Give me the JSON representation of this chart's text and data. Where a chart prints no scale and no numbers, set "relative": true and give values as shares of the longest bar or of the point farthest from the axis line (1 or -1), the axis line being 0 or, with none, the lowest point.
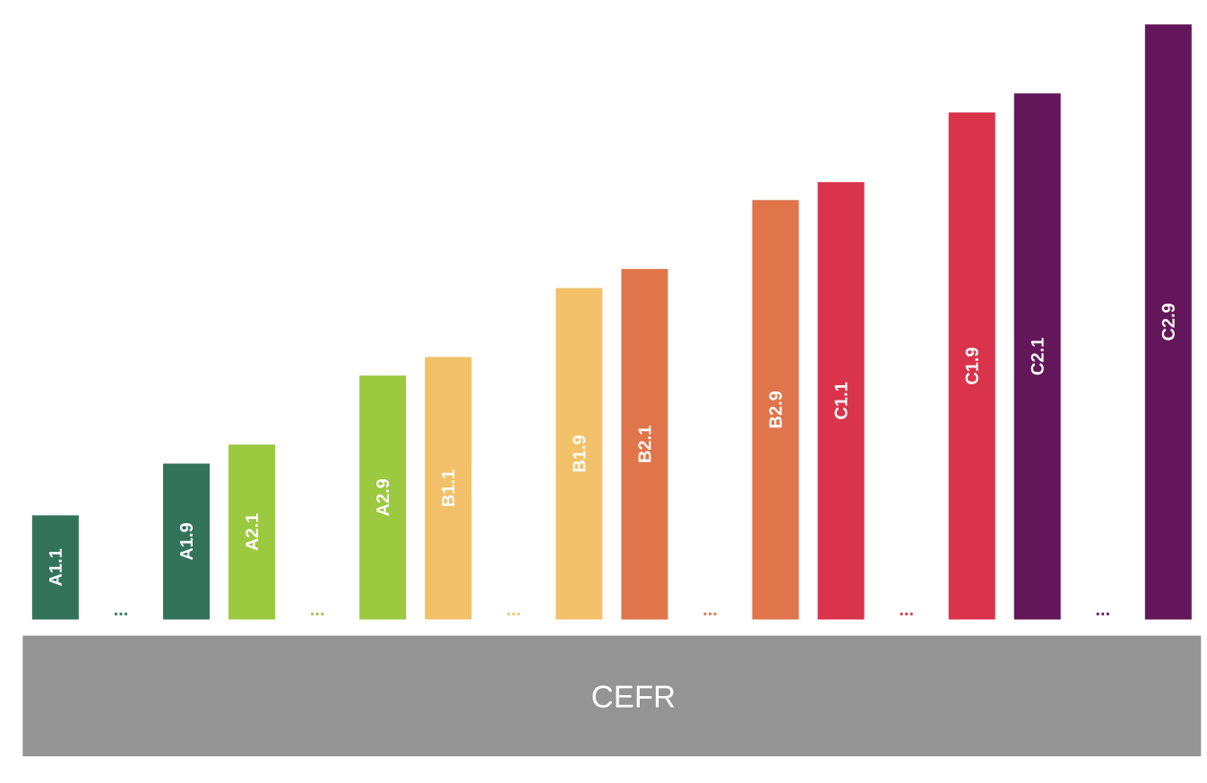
{
  "chart_data": {
    "type": "bar",
    "relative": true,
    "categories": [
      "A1.1",
      "...",
      "A1.9",
      "A2.1",
      "...",
      "A2.9",
      "B1.1",
      "...",
      "B1.9",
      "B2.1",
      "...",
      "B2.9",
      "C1.1",
      "...",
      "C1.9",
      "C2.1",
      "...",
      "C2.9"
    ],
    "values": [
      0.175,
      null,
      0.262,
      0.294,
      null,
      0.41,
      0.441,
      null,
      0.557,
      0.589,
      null,
      0.705,
      0.735,
      null,
      0.852,
      0.884,
      null,
      1
    ],
    "colors": [
      "#33735a",
      "#33735a",
      "#33735a",
      "#9bc940",
      "#9bc940",
      "#9bc940",
      "#f2c169",
      "#f2c169",
      "#f2c169",
      "#e0744a",
      "#e0744a",
      "#e0744a",
      "#d9344b",
      "#d9344b",
      "#d9344b",
      "#631659",
      "#631659",
      "#631659"
    ],
    "annotations": [
      "CEFR"
    ]
  }
}
